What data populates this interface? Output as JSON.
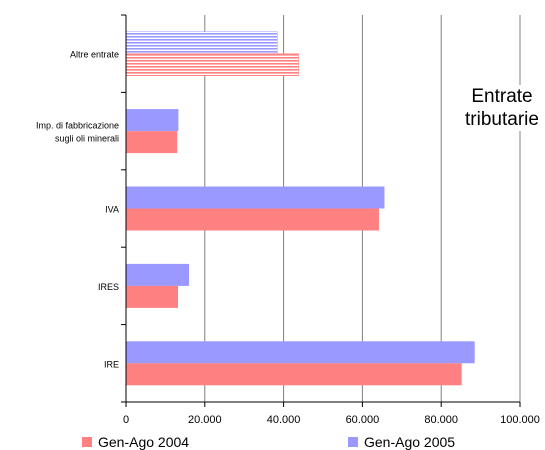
{
  "chart_data": {
    "type": "bar",
    "orientation": "horizontal",
    "title_lines": [
      "Entrate",
      "tributarie"
    ],
    "categories": [
      "Altre entrate",
      "Imp. di fabbricazione sugli oli minerali",
      "IVA",
      "IRES",
      "IRE"
    ],
    "category_label_lines": [
      [
        "Altre entrate"
      ],
      [
        "Imp. di fabbricazione",
        "sugli oli minerali"
      ],
      [
        "IVA"
      ],
      [
        "IRES"
      ],
      [
        "IRE"
      ]
    ],
    "series": [
      {
        "name": "Gen-Ago 2004",
        "values": [
          43800,
          13000,
          64200,
          13200,
          85200
        ],
        "color": "#ff8080"
      },
      {
        "name": "Gen-Ago 2005",
        "values": [
          38400,
          13300,
          65600,
          16000,
          88500
        ],
        "color": "#9999ff"
      }
    ],
    "striped_category": "Altre entrate",
    "xlim": [
      0,
      100000
    ],
    "xticks": [
      "0",
      "20.000",
      "40.000",
      "60.000",
      "80.000",
      "100.000"
    ],
    "grid": true,
    "legend_position": "bottom"
  }
}
